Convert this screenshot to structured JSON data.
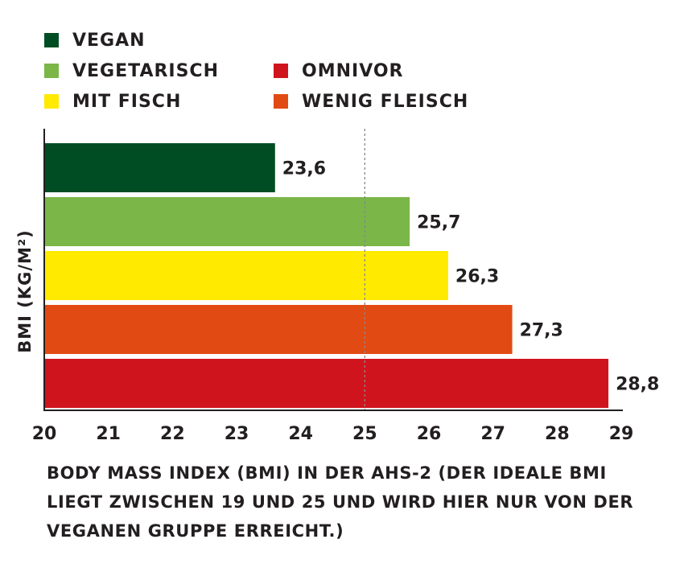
{
  "legend": [
    {
      "label": "VEGAN",
      "color": "#004d23"
    },
    {
      "label": "VEGETARISCH",
      "color": "#7ab648"
    },
    {
      "label": "MIT FISCH",
      "color": "#ffea00"
    },
    {
      "label": "OMNIVOR",
      "color": "#d0141e"
    },
    {
      "label": "WENIG FLEISCH",
      "color": "#e14b13"
    }
  ],
  "chart_data": {
    "type": "bar",
    "orientation": "horizontal",
    "categories": [
      "VEGAN",
      "VEGETARISCH",
      "MIT FISCH",
      "WENIG FLEISCH",
      "OMNIVOR"
    ],
    "values": [
      23.6,
      25.7,
      26.3,
      27.3,
      28.8
    ],
    "value_labels": [
      "23,6",
      "25,7",
      "26,3",
      "27,3",
      "28,8"
    ],
    "colors": [
      "#004d23",
      "#7ab648",
      "#ffea00",
      "#e14b13",
      "#d0141e"
    ],
    "ylabel": "BMI (KG/M²)",
    "xlim": [
      20,
      29
    ],
    "xticks": [
      "20",
      "21",
      "22",
      "23",
      "24",
      "25",
      "26",
      "27",
      "28",
      "29"
    ],
    "reference_line": 25,
    "grid": false
  },
  "caption": "BODY MASS INDEX (BMI) IN DER AHS-2 (DER IDEALE BMI LIEGT ZWISCHEN 19 UND 25 UND WIRD HIER NUR VON DER VEGANEN GRUPPE ERREICHT.)"
}
